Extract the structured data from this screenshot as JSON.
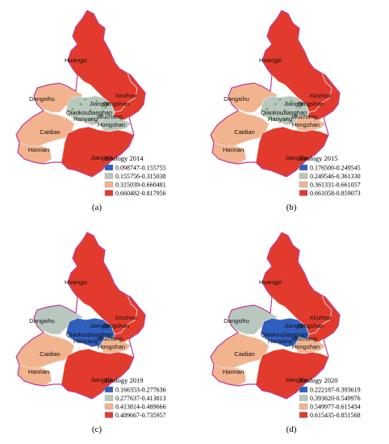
{
  "colors": {
    "class1": "#2f5fbf",
    "class2": "#b9c8be",
    "class3": "#f2b48e",
    "class4": "#e23a2c",
    "outline": "#c13a92"
  },
  "district_names": {
    "huangpi": "Huangpi",
    "xinzhou": "Xinzhou",
    "dongxihu": "Dongxihu",
    "jiangan": "Jiangan",
    "qingshan": "Qingshan",
    "qiaokou": "Qiaokou",
    "jianghan": "Jianghan",
    "wuchang": "Wuchang",
    "hanyang": "Hanyang",
    "hongshan": "Hongshan",
    "caidian": "Caidian",
    "hannan": "Hannan",
    "jiangxia": "Jiangxia"
  },
  "panels": [
    {
      "label": "(a)",
      "legend_title": "Ecology 2014",
      "ranges": [
        "0.098747-0.155755",
        "0.155756-0.315038",
        "0.315039-0.660481",
        "0.660482-0.817956"
      ],
      "fill": {
        "huangpi": 4,
        "xinzhou": 4,
        "dongxihu": 3,
        "jiangxia": 4,
        "caidian": 3,
        "hannan": 3,
        "center": 2,
        "hongshan": 2
      }
    },
    {
      "label": "(b)",
      "legend_title": "Ecology 2015",
      "ranges": [
        "0.176500-0.249545",
        "0.249546-0.361330",
        "0.361331-0.661057",
        "0.661058-0.859073"
      ],
      "fill": {
        "huangpi": 4,
        "xinzhou": 4,
        "dongxihu": 3,
        "jiangxia": 4,
        "caidian": 3,
        "hannan": 3,
        "center": 2,
        "hongshan": 3
      }
    },
    {
      "label": "(c)",
      "legend_title": "Ecology 2019",
      "ranges": [
        "0.166353-0.277636",
        "0.277637-0.413813",
        "0.413814-0.489666",
        "0.489667-0.735957"
      ],
      "fill": {
        "huangpi": 4,
        "xinzhou": 4,
        "dongxihu": 2,
        "jiangxia": 4,
        "caidian": 3,
        "hannan": 3,
        "center": 1,
        "hongshan": 3
      }
    },
    {
      "label": "(d)",
      "legend_title": "Ecology 2020",
      "ranges": [
        "0.222187-0.393619",
        "0.393620-0.549976",
        "0.549977-0.615434",
        "0.615435-0.851568"
      ],
      "fill": {
        "huangpi": 4,
        "xinzhou": 4,
        "dongxihu": 2,
        "jiangxia": 4,
        "caidian": 3,
        "hannan": 3,
        "center": 1,
        "hongshan": 3
      }
    }
  ]
}
